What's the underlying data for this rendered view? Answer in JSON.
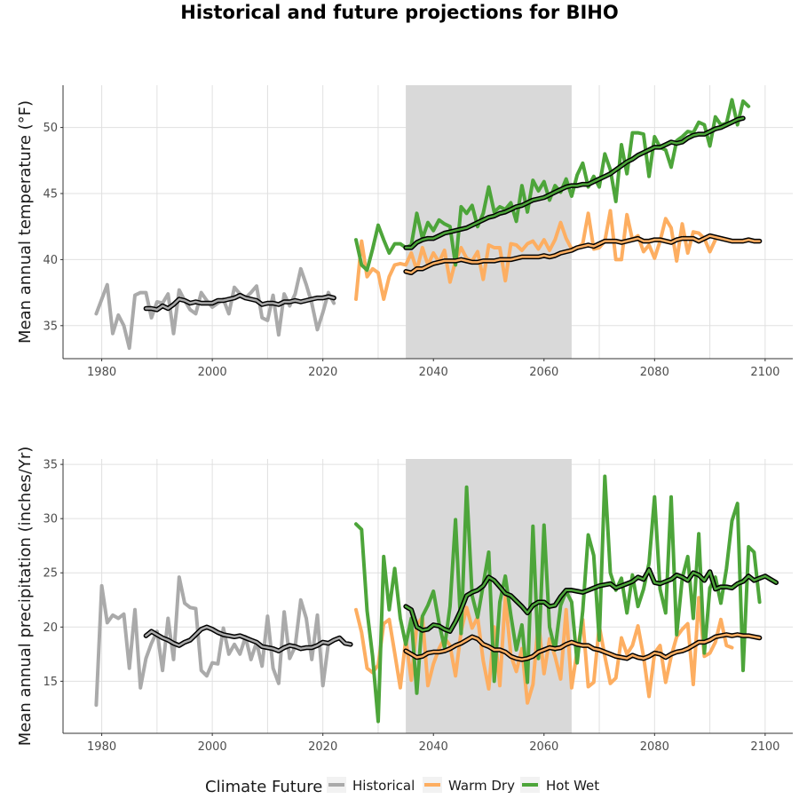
{
  "title": "Historical and future projections for BIHO",
  "legend": {
    "title": "Climate Future",
    "items": [
      {
        "label": "Historical",
        "color": "#aaaaaa"
      },
      {
        "label": "Warm Dry",
        "color": "#fdae61"
      },
      {
        "label": "Hot Wet",
        "color": "#4da53a"
      }
    ]
  },
  "chart_data": [
    {
      "type": "line",
      "ylabel": "Mean annual temperature (°F)",
      "xlim": [
        1973,
        2105
      ],
      "ylim": [
        32.5,
        53.2
      ],
      "xticks": [
        1980,
        2000,
        2020,
        2040,
        2060,
        2080,
        2100
      ],
      "yticks": [
        35,
        40,
        45,
        50
      ],
      "shaded_range": [
        2035,
        2065
      ],
      "series": [
        {
          "name": "Historical",
          "color": "#aaaaaa",
          "x_start": 1979,
          "values": [
            35.9,
            37.0,
            38.1,
            34.4,
            35.8,
            35.0,
            33.3,
            37.3,
            37.5,
            37.5,
            35.6,
            36.8,
            36.7,
            37.4,
            34.4,
            37.7,
            36.9,
            36.2,
            35.9,
            37.5,
            36.9,
            36.4,
            36.7,
            37.0,
            35.9,
            37.9,
            37.4,
            37.1,
            37.5,
            38.0,
            35.6,
            35.4,
            37.3,
            34.3,
            37.4,
            36.5,
            37.4,
            39.3,
            38.1,
            36.7,
            34.7,
            36.0,
            37.5,
            36.7
          ]
        },
        {
          "name": "Historical",
          "smooth": true,
          "x_start": 1988,
          "values": [
            36.3,
            36.3,
            36.2,
            36.5,
            36.3,
            36.6,
            37.0,
            36.9,
            36.7,
            36.8,
            36.7,
            36.7,
            36.7,
            36.9,
            36.9,
            37.0,
            37.1,
            37.3,
            37.1,
            37.0,
            36.9,
            36.6,
            36.7,
            36.7,
            36.6,
            36.8,
            36.8,
            36.9,
            36.8,
            36.9,
            37.0,
            37.1,
            37.1,
            37.2,
            37.1
          ]
        },
        {
          "name": "Warm Dry",
          "color": "#fdae61",
          "x_start": 2026,
          "values": [
            37.0,
            41.4,
            38.7,
            39.3,
            39.0,
            37.0,
            38.7,
            39.6,
            39.7,
            39.6,
            40.5,
            39.2,
            40.9,
            39.6,
            40.5,
            39.8,
            40.7,
            38.3,
            39.9,
            40.9,
            40.1,
            39.9,
            40.6,
            38.5,
            41.1,
            40.9,
            40.9,
            38.4,
            41.2,
            41.1,
            40.7,
            41.2,
            41.4,
            40.8,
            41.5,
            40.7,
            41.5,
            42.8,
            41.6,
            40.8,
            40.9,
            41.2,
            43.5,
            40.8,
            40.9,
            41.4,
            43.7,
            40.0,
            40.0,
            43.4,
            41.5,
            41.8,
            40.6,
            41.1,
            40.1,
            41.4,
            43.1,
            42.4,
            39.9,
            42.7,
            40.5,
            42.1,
            42.0,
            41.6,
            40.6,
            41.5
          ]
        },
        {
          "name": "Hot Wet",
          "color": "#4da53a",
          "x_start": 2026,
          "values": [
            41.5,
            39.6,
            39.2,
            40.8,
            42.6,
            41.5,
            40.5,
            41.2,
            41.2,
            40.9,
            41.1,
            43.5,
            41.6,
            42.8,
            42.2,
            43.0,
            42.7,
            42.5,
            39.6,
            44.0,
            43.5,
            44.1,
            42.5,
            43.5,
            45.5,
            43.6,
            44.0,
            43.8,
            44.3,
            42.9,
            45.6,
            43.6,
            46.0,
            45.2,
            45.9,
            44.5,
            45.6,
            45.1,
            46.1,
            44.8,
            46.4,
            47.3,
            45.5,
            46.3,
            45.5,
            48.0,
            46.8,
            44.4,
            48.7,
            46.5,
            49.6,
            49.6,
            49.5,
            46.3,
            49.3,
            48.5,
            48.3,
            47.0,
            49.0,
            49.3,
            49.7,
            49.6,
            50.4,
            50.2,
            48.6,
            50.8,
            50.2,
            50.3,
            52.1,
            50.2,
            52.0,
            51.6
          ]
        },
        {
          "name": "Warm Dry",
          "smooth": true,
          "x_start": 2035,
          "values": [
            39.1,
            39.0,
            39.3,
            39.3,
            39.5,
            39.7,
            39.8,
            39.9,
            39.9,
            39.9,
            40.0,
            39.9,
            39.8,
            39.8,
            39.9,
            39.9,
            39.9,
            40.0,
            40.0,
            40.0,
            40.1,
            40.2,
            40.2,
            40.2,
            40.2,
            40.3,
            40.2,
            40.3,
            40.5,
            40.6,
            40.7,
            40.9,
            41.0,
            41.1,
            41.0,
            41.2,
            41.4,
            41.4,
            41.4,
            41.3,
            41.4,
            41.5,
            41.6,
            41.4,
            41.4,
            41.5,
            41.5,
            41.4,
            41.3,
            41.5,
            41.6,
            41.6,
            41.6,
            41.4,
            41.6,
            41.8,
            41.7,
            41.6,
            41.5,
            41.4,
            41.4,
            41.4,
            41.5,
            41.4,
            41.4
          ]
        },
        {
          "name": "Hot Wet",
          "smooth": true,
          "x_start": 2035,
          "values": [
            40.9,
            40.9,
            41.3,
            41.5,
            41.6,
            41.6,
            41.8,
            42.0,
            42.1,
            42.2,
            42.3,
            42.4,
            42.6,
            42.8,
            43.0,
            43.2,
            43.3,
            43.5,
            43.6,
            43.8,
            44.0,
            44.1,
            44.3,
            44.5,
            44.6,
            44.7,
            44.9,
            45.1,
            45.3,
            45.5,
            45.6,
            45.6,
            45.7,
            45.7,
            45.9,
            46.1,
            46.3,
            46.5,
            46.8,
            47.1,
            47.4,
            47.6,
            47.9,
            48.1,
            48.3,
            48.5,
            48.5,
            48.7,
            48.9,
            48.8,
            48.9,
            49.2,
            49.4,
            49.5,
            49.5,
            49.7,
            49.9,
            50.0,
            50.2,
            50.4,
            50.6,
            50.7
          ]
        }
      ]
    },
    {
      "type": "line",
      "ylabel": "Mean annual precipitation (inches/Yr)",
      "xlim": [
        1973,
        2105
      ],
      "ylim": [
        10.2,
        35.5
      ],
      "xticks": [
        1980,
        2000,
        2020,
        2040,
        2060,
        2080,
        2100
      ],
      "yticks": [
        15,
        20,
        25,
        30,
        35
      ],
      "shaded_range": [
        2035,
        2065
      ],
      "series": [
        {
          "name": "Historical",
          "color": "#aaaaaa",
          "x_start": 1979,
          "values": [
            12.8,
            23.8,
            20.4,
            21.1,
            20.8,
            21.2,
            16.2,
            21.6,
            14.4,
            17.1,
            18.5,
            19.6,
            16.0,
            20.8,
            17.0,
            24.6,
            22.2,
            21.8,
            21.7,
            16.0,
            15.5,
            16.7,
            16.6,
            19.9,
            17.5,
            18.4,
            17.5,
            19.1,
            17.0,
            18.6,
            16.4,
            21.0,
            16.2,
            14.8,
            21.4,
            17.1,
            18.2,
            22.5,
            20.8,
            17.0,
            21.1,
            14.6,
            18.5
          ]
        },
        {
          "name": "Historical",
          "smooth": true,
          "x_start": 1988,
          "values": [
            19.2,
            19.6,
            19.3,
            19.0,
            18.8,
            18.5,
            18.3,
            18.6,
            18.8,
            19.3,
            19.8,
            20.0,
            19.8,
            19.5,
            19.3,
            19.2,
            19.1,
            19.2,
            19.0,
            18.8,
            18.6,
            18.2,
            18.1,
            18.0,
            17.8,
            18.1,
            18.3,
            18.2,
            18.0,
            18.1,
            18.1,
            18.3,
            18.6,
            18.5,
            18.8,
            19.0,
            18.5,
            18.4
          ]
        },
        {
          "name": "Warm Dry",
          "color": "#fdae61",
          "x_start": 2026,
          "values": [
            21.6,
            19.5,
            16.2,
            15.8,
            16.5,
            20.3,
            20.7,
            17.6,
            14.4,
            18.9,
            15.1,
            20.2,
            20.9,
            14.6,
            16.6,
            18.0,
            19.0,
            18.3,
            15.5,
            19.6,
            21.8,
            19.9,
            20.9,
            16.9,
            14.3,
            20.0,
            14.6,
            22.8,
            17.4,
            15.9,
            18.0,
            13.0,
            14.7,
            20.5,
            15.7,
            18.9,
            17.3,
            15.2,
            21.6,
            14.4,
            17.8,
            20.7,
            14.5,
            14.9,
            20.1,
            17.3,
            14.8,
            15.3,
            19.0,
            17.5,
            18.3,
            20.1,
            17.3,
            13.6,
            17.6,
            18.3,
            14.9,
            17.3,
            19.1,
            19.8,
            20.3,
            14.7,
            22.7,
            17.3,
            17.6,
            18.6,
            20.7,
            18.3,
            18.1
          ]
        },
        {
          "name": "Hot Wet",
          "color": "#4da53a",
          "x_start": 2026,
          "values": [
            29.5,
            29.0,
            21.5,
            17.3,
            11.3,
            26.5,
            21.6,
            25.4,
            20.8,
            18.4,
            20.8,
            13.9,
            21.0,
            22.0,
            23.3,
            20.4,
            18.1,
            21.9,
            29.9,
            19.4,
            32.9,
            22.9,
            20.9,
            23.9,
            26.9,
            15.0,
            22.3,
            24.7,
            21.1,
            17.9,
            20.2,
            14.9,
            29.3,
            17.1,
            29.4,
            20.0,
            17.9,
            22.0,
            23.3,
            22.3,
            16.7,
            21.5,
            28.5,
            26.6,
            18.8,
            33.9,
            25.0,
            23.4,
            24.5,
            21.3,
            24.8,
            21.9,
            23.5,
            25.9,
            32.0,
            23.5,
            21.3,
            32.0,
            19.3,
            24.5,
            26.5,
            20.8,
            28.6,
            17.6,
            23.6,
            24.6,
            22.2,
            25.4,
            29.8,
            31.4,
            16.0,
            27.4,
            26.9,
            22.3
          ]
        },
        {
          "name": "Warm Dry",
          "smooth": true,
          "x_start": 2035,
          "values": [
            17.8,
            17.5,
            17.2,
            17.3,
            17.6,
            17.7,
            17.7,
            17.8,
            18.0,
            18.3,
            18.5,
            18.8,
            19.1,
            18.9,
            18.4,
            18.2,
            17.9,
            17.9,
            17.7,
            17.3,
            17.1,
            17.0,
            17.1,
            17.3,
            17.7,
            17.9,
            18.1,
            18.0,
            18.1,
            18.4,
            18.6,
            18.4,
            18.3,
            18.3,
            18.0,
            17.9,
            17.7,
            17.5,
            17.3,
            17.2,
            17.1,
            17.4,
            17.2,
            17.1,
            17.3,
            17.6,
            17.5,
            17.2,
            17.5,
            17.7,
            17.8,
            18.0,
            18.3,
            18.6,
            18.6,
            18.8,
            19.1,
            19.2,
            19.3,
            19.2,
            19.3,
            19.2,
            19.2,
            19.1,
            19.0
          ]
        },
        {
          "name": "Hot Wet",
          "smooth": true,
          "x_start": 2035,
          "values": [
            21.9,
            21.6,
            20.0,
            19.7,
            19.8,
            20.2,
            20.1,
            19.8,
            19.6,
            20.5,
            21.6,
            22.9,
            23.2,
            23.4,
            23.8,
            24.6,
            24.3,
            23.7,
            23.1,
            22.9,
            22.4,
            21.9,
            21.3,
            22.0,
            22.3,
            22.3,
            21.9,
            22.0,
            22.8,
            23.4,
            23.4,
            23.3,
            23.2,
            23.4,
            23.6,
            23.8,
            23.9,
            24.0,
            23.6,
            23.8,
            24.0,
            24.2,
            24.6,
            24.4,
            25.3,
            24.1,
            24.0,
            24.2,
            24.4,
            24.8,
            24.6,
            24.3,
            25.0,
            24.8,
            24.3,
            25.1,
            23.5,
            23.7,
            23.7,
            23.6,
            24.0,
            24.2,
            24.7,
            24.3,
            24.5,
            24.7,
            24.4,
            24.1
          ]
        }
      ]
    }
  ]
}
